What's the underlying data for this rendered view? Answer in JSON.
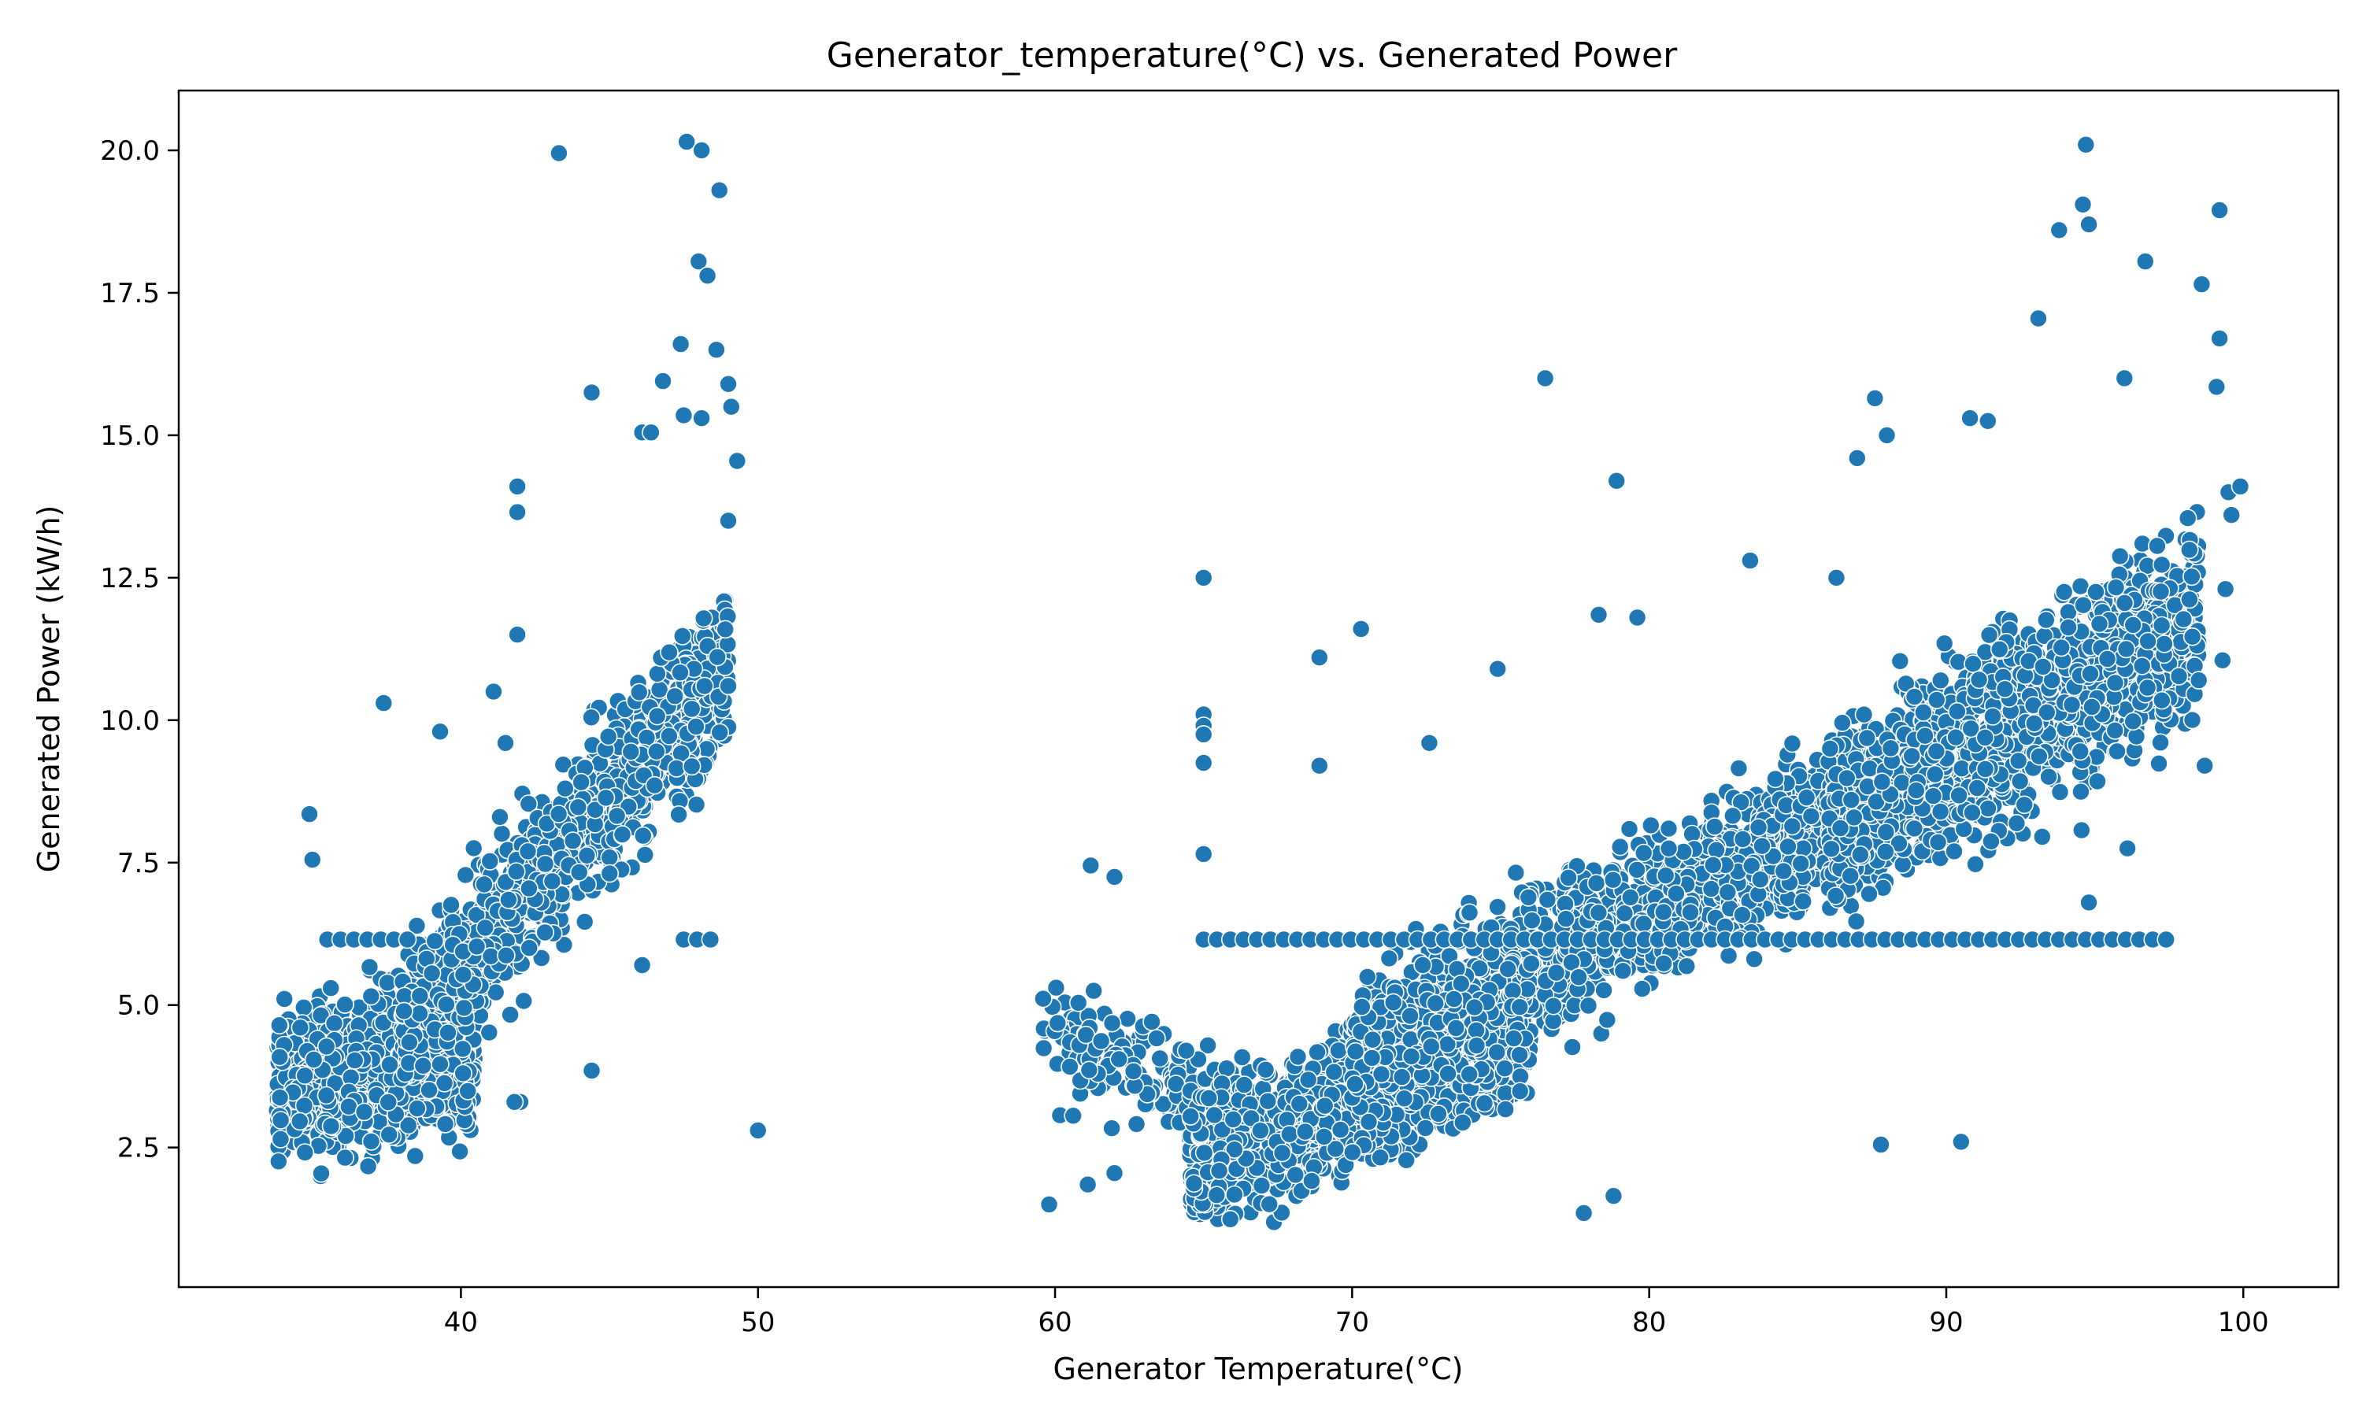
{
  "chart_data": {
    "type": "scatter",
    "title": "Generator_temperature(°C) vs. Generated Power",
    "xlabel": "Generator Temperature(°C)",
    "ylabel": "Generated Power (kW/h)",
    "xlim": [
      30.5,
      103.2
    ],
    "ylim": [
      0.05,
      21.05
    ],
    "xticks": [
      40,
      50,
      60,
      70,
      80,
      90,
      100
    ],
    "yticks": [
      2.5,
      5.0,
      7.5,
      10.0,
      12.5,
      15.0,
      17.5,
      20.0
    ],
    "grid": false,
    "marker_color": "#1f77b4",
    "marker_edge_color": "#ffffff",
    "clusters": [
      {
        "x_range": [
          33.8,
          40.5
        ],
        "y_center_start": 3.6,
        "y_center_end": 4.2,
        "y_spread": 1.3,
        "count": 900
      },
      {
        "x_range": [
          38.0,
          49.0
        ],
        "y_center_start": 4.5,
        "y_center_end": 11.0,
        "y_spread": 1.3,
        "count": 1100
      },
      {
        "x_range": [
          59.5,
          66.0
        ],
        "y_center_start": 4.5,
        "y_center_end": 3.2,
        "y_spread": 0.9,
        "count": 160
      },
      {
        "x_range": [
          64.5,
          76.0
        ],
        "y_center_start": 2.2,
        "y_center_end": 4.6,
        "y_spread": 1.1,
        "count": 1300
      },
      {
        "x_range": [
          70.0,
          88.0
        ],
        "y_center_start": 4.2,
        "y_center_end": 8.6,
        "y_spread": 1.2,
        "count": 1500
      },
      {
        "x_range": [
          86.0,
          98.5
        ],
        "y_center_start": 8.2,
        "y_center_end": 11.8,
        "y_spread": 1.6,
        "count": 1400
      }
    ],
    "flat_band": {
      "y": 6.15,
      "segments": [
        [
          35.5,
          38.5
        ],
        [
          47.5,
          48.8
        ],
        [
          65.0,
          97.8
        ]
      ],
      "step": 0.45
    },
    "points": [
      [
        34.9,
        8.35
      ],
      [
        35.0,
        7.55
      ],
      [
        37.4,
        10.3
      ],
      [
        39.3,
        9.8
      ],
      [
        41.9,
        14.1
      ],
      [
        41.9,
        13.65
      ],
      [
        41.9,
        11.5
      ],
      [
        41.1,
        10.5
      ],
      [
        43.3,
        19.95
      ],
      [
        47.6,
        20.15
      ],
      [
        48.1,
        20.0
      ],
      [
        48.7,
        19.3
      ],
      [
        48.0,
        18.05
      ],
      [
        48.3,
        17.8
      ],
      [
        47.4,
        16.6
      ],
      [
        48.6,
        16.5
      ],
      [
        46.8,
        15.95
      ],
      [
        49.0,
        15.9
      ],
      [
        44.4,
        15.75
      ],
      [
        49.1,
        15.5
      ],
      [
        47.5,
        15.35
      ],
      [
        46.1,
        15.05
      ],
      [
        46.4,
        15.05
      ],
      [
        48.1,
        15.3
      ],
      [
        49.3,
        14.55
      ],
      [
        49.0,
        13.5
      ],
      [
        44.4,
        3.85
      ],
      [
        50.0,
        2.8
      ],
      [
        46.1,
        5.7
      ],
      [
        49.0,
        10.6
      ],
      [
        42.0,
        3.3
      ],
      [
        41.8,
        3.3
      ],
      [
        41.5,
        9.6
      ],
      [
        59.8,
        1.5
      ],
      [
        61.1,
        1.85
      ],
      [
        62.0,
        2.05
      ],
      [
        61.2,
        7.45
      ],
      [
        62.0,
        7.25
      ],
      [
        65.0,
        12.5
      ],
      [
        65.0,
        10.1
      ],
      [
        65.0,
        9.9
      ],
      [
        65.0,
        9.75
      ],
      [
        65.0,
        9.25
      ],
      [
        65.0,
        7.65
      ],
      [
        68.9,
        11.1
      ],
      [
        70.3,
        11.6
      ],
      [
        68.9,
        9.2
      ],
      [
        72.6,
        9.6
      ],
      [
        74.9,
        10.9
      ],
      [
        76.5,
        16.0
      ],
      [
        78.9,
        14.2
      ],
      [
        78.3,
        11.85
      ],
      [
        79.6,
        11.8
      ],
      [
        77.8,
        1.35
      ],
      [
        78.8,
        1.65
      ],
      [
        83.4,
        12.8
      ],
      [
        86.3,
        12.5
      ],
      [
        87.0,
        14.6
      ],
      [
        87.6,
        15.65
      ],
      [
        88.0,
        15.0
      ],
      [
        87.8,
        2.55
      ],
      [
        90.5,
        2.6
      ],
      [
        90.8,
        15.3
      ],
      [
        91.4,
        15.25
      ],
      [
        94.7,
        20.1
      ],
      [
        94.6,
        19.05
      ],
      [
        94.8,
        18.7
      ],
      [
        93.8,
        18.6
      ],
      [
        96.7,
        18.05
      ],
      [
        99.2,
        18.95
      ],
      [
        98.6,
        17.65
      ],
      [
        99.1,
        15.85
      ],
      [
        99.2,
        16.7
      ],
      [
        99.5,
        14.0
      ],
      [
        99.9,
        14.1
      ],
      [
        99.6,
        13.6
      ],
      [
        99.4,
        12.3
      ],
      [
        99.3,
        11.05
      ],
      [
        98.7,
        9.2
      ],
      [
        98.5,
        10.7
      ],
      [
        94.8,
        6.8
      ],
      [
        96.1,
        7.75
      ],
      [
        96.0,
        16.0
      ],
      [
        93.1,
        17.05
      ]
    ]
  }
}
